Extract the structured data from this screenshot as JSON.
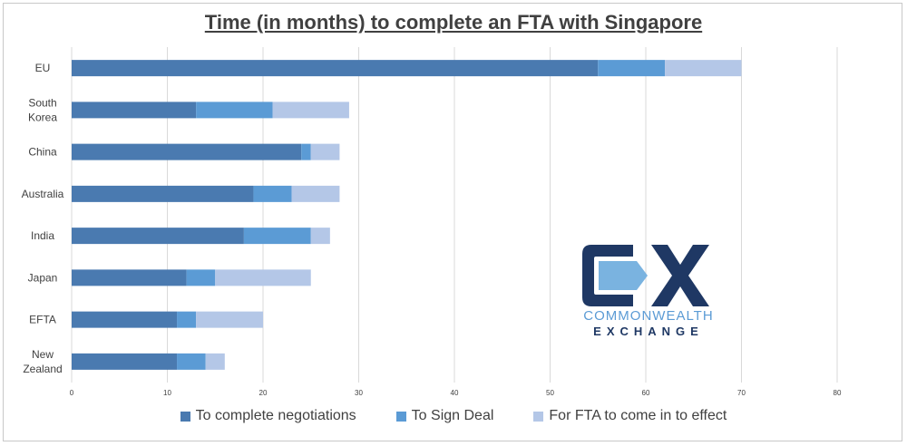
{
  "colors": {
    "series1": "#4a7ab0",
    "series2": "#5b9bd5",
    "series3": "#b4c7e7",
    "grid": "#d9d9d9",
    "text": "#404040",
    "logo_dark": "#1f3864",
    "logo_light": "#7ab3e0"
  },
  "logo": {
    "line1": "COMMONWEALTH",
    "line2": "EXCHANGE"
  },
  "chart_data": {
    "type": "bar",
    "orientation": "horizontal",
    "stacked": true,
    "title": "Time (in months) to complete an FTA with Singapore",
    "xlabel": "",
    "ylabel": "",
    "xlim": [
      0,
      80
    ],
    "xticks": [
      0,
      10,
      20,
      30,
      40,
      50,
      60,
      70,
      80
    ],
    "grid": true,
    "legend_position": "bottom",
    "categories": [
      "EU",
      "South Korea",
      "China",
      "Australia",
      "India",
      "Japan",
      "EFTA",
      "New Zealand"
    ],
    "category_lines": [
      [
        "EU"
      ],
      [
        "South",
        "Korea"
      ],
      [
        "China"
      ],
      [
        "Australia"
      ],
      [
        "India"
      ],
      [
        "Japan"
      ],
      [
        "EFTA"
      ],
      [
        "New",
        "Zealand"
      ]
    ],
    "series": [
      {
        "name": "To complete negotiations",
        "values": [
          55,
          13,
          24,
          19,
          18,
          12,
          11,
          11
        ]
      },
      {
        "name": "To Sign Deal",
        "values": [
          7,
          8,
          1,
          4,
          7,
          3,
          2,
          3
        ]
      },
      {
        "name": "For FTA to come in to effect",
        "values": [
          8,
          8,
          3,
          5,
          2,
          10,
          7,
          2
        ]
      }
    ]
  }
}
